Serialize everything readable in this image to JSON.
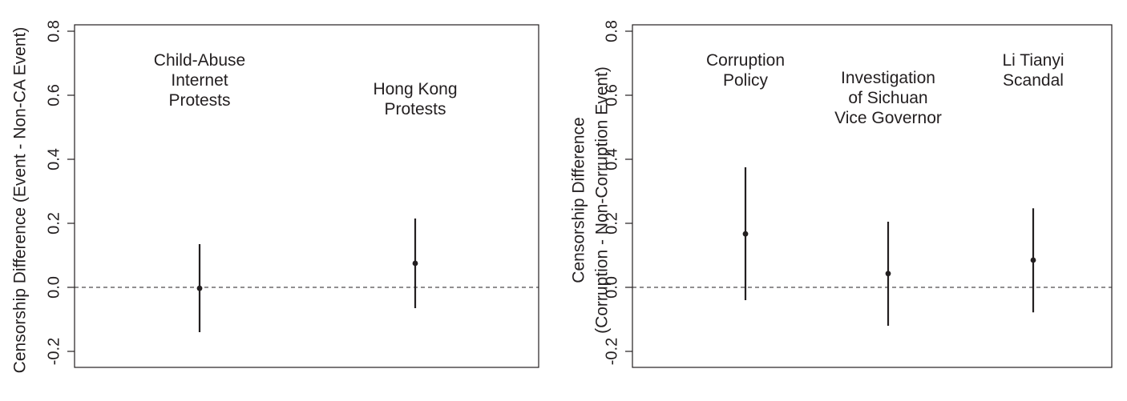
{
  "chart_data": [
    {
      "type": "scatter",
      "ylabel_lines": [
        "Censorship Difference (Event - Non-CA Event)"
      ],
      "ylim": [
        -0.25,
        0.82
      ],
      "yticks": [
        "-0.2",
        "0.0",
        "0.2",
        "0.4",
        "0.6",
        "0.8"
      ],
      "ytick_values": [
        -0.2,
        0.0,
        0.2,
        0.4,
        0.6,
        0.8
      ],
      "reference_line": 0.0,
      "grid": false,
      "points": [
        {
          "label_lines": [
            "Child-Abuse",
            "Internet",
            "Protests"
          ],
          "estimate": -0.003,
          "ci_low": -0.14,
          "ci_high": 0.135
        },
        {
          "label_lines": [
            "Hong Kong",
            "Protests"
          ],
          "estimate": 0.075,
          "ci_low": -0.065,
          "ci_high": 0.215
        }
      ]
    },
    {
      "type": "scatter",
      "ylabel_lines": [
        "Censorship Difference",
        "(Corruption - Non-Corruption Event)"
      ],
      "ylim": [
        -0.25,
        0.82
      ],
      "yticks": [
        "-0.2",
        "0.0",
        "0.2",
        "0.4",
        "0.6",
        "0.8"
      ],
      "ytick_values": [
        -0.2,
        0.0,
        0.2,
        0.4,
        0.6,
        0.8
      ],
      "reference_line": 0.0,
      "grid": false,
      "points": [
        {
          "label_lines": [
            "Corruption",
            "Policy"
          ],
          "estimate": 0.167,
          "ci_low": -0.04,
          "ci_high": 0.375
        },
        {
          "label_lines": [
            "Investigation",
            "of Sichuan",
            "Vice Governor"
          ],
          "estimate": 0.043,
          "ci_low": -0.12,
          "ci_high": 0.205
        },
        {
          "label_lines": [
            "Li Tianyi",
            "Scandal"
          ],
          "estimate": 0.085,
          "ci_low": -0.078,
          "ci_high": 0.247
        }
      ]
    }
  ],
  "colors": {
    "ink": "#231f20",
    "background": "#ffffff"
  }
}
